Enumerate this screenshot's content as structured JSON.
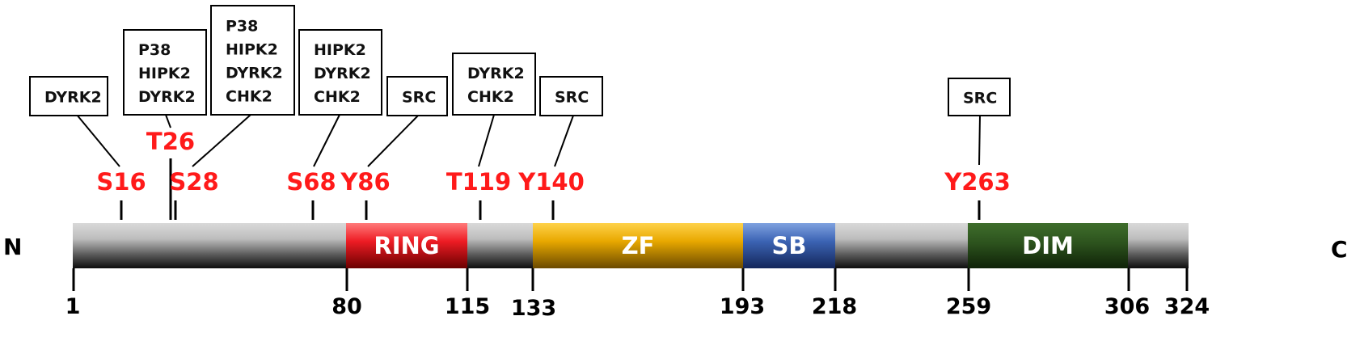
{
  "protein": {
    "n_terminus": "N",
    "c_terminus": "C",
    "length": 324,
    "domains": [
      {
        "id": "ring",
        "label": "RING",
        "start": 80,
        "end": 115,
        "color": "#e8121b"
      },
      {
        "id": "zf",
        "label": "ZF",
        "start": 133,
        "end": 193,
        "color": "#e6a700"
      },
      {
        "id": "sb",
        "label": "SB",
        "start": 193,
        "end": 218,
        "color": "#3a62b0"
      },
      {
        "id": "dim",
        "label": "DIM",
        "start": 259,
        "end": 306,
        "color": "#2d5a1e"
      }
    ],
    "axis_ticks": [
      "1",
      "80",
      "115",
      "133",
      "193",
      "218",
      "259",
      "306",
      "324"
    ]
  },
  "sites": [
    {
      "id": "s16",
      "label": "S16",
      "position": 16,
      "kinases": [
        "DYRK2"
      ]
    },
    {
      "id": "t26",
      "label": "T26",
      "position": 26,
      "kinases": [
        "P38",
        "HIPK2",
        "DYRK2"
      ]
    },
    {
      "id": "s28",
      "label": "S28",
      "position": 28,
      "kinases": [
        "P38",
        "HIPK2",
        "DYRK2",
        "CHK2"
      ]
    },
    {
      "id": "s68",
      "label": "S68",
      "position": 68,
      "kinases": [
        "HIPK2",
        "DYRK2",
        "CHK2"
      ]
    },
    {
      "id": "y86",
      "label": "Y86",
      "position": 86,
      "kinases": [
        "SRC"
      ]
    },
    {
      "id": "t119",
      "label": "T119",
      "position": 119,
      "kinases": [
        "DYRK2",
        "CHK2"
      ]
    },
    {
      "id": "y140",
      "label": "Y140",
      "position": 140,
      "kinases": [
        "SRC"
      ]
    },
    {
      "id": "y263",
      "label": "Y263",
      "position": 263,
      "kinases": [
        "SRC"
      ]
    }
  ],
  "colors": {
    "site_label": "#ff1a1a",
    "backbone": "#7a7a7a"
  }
}
